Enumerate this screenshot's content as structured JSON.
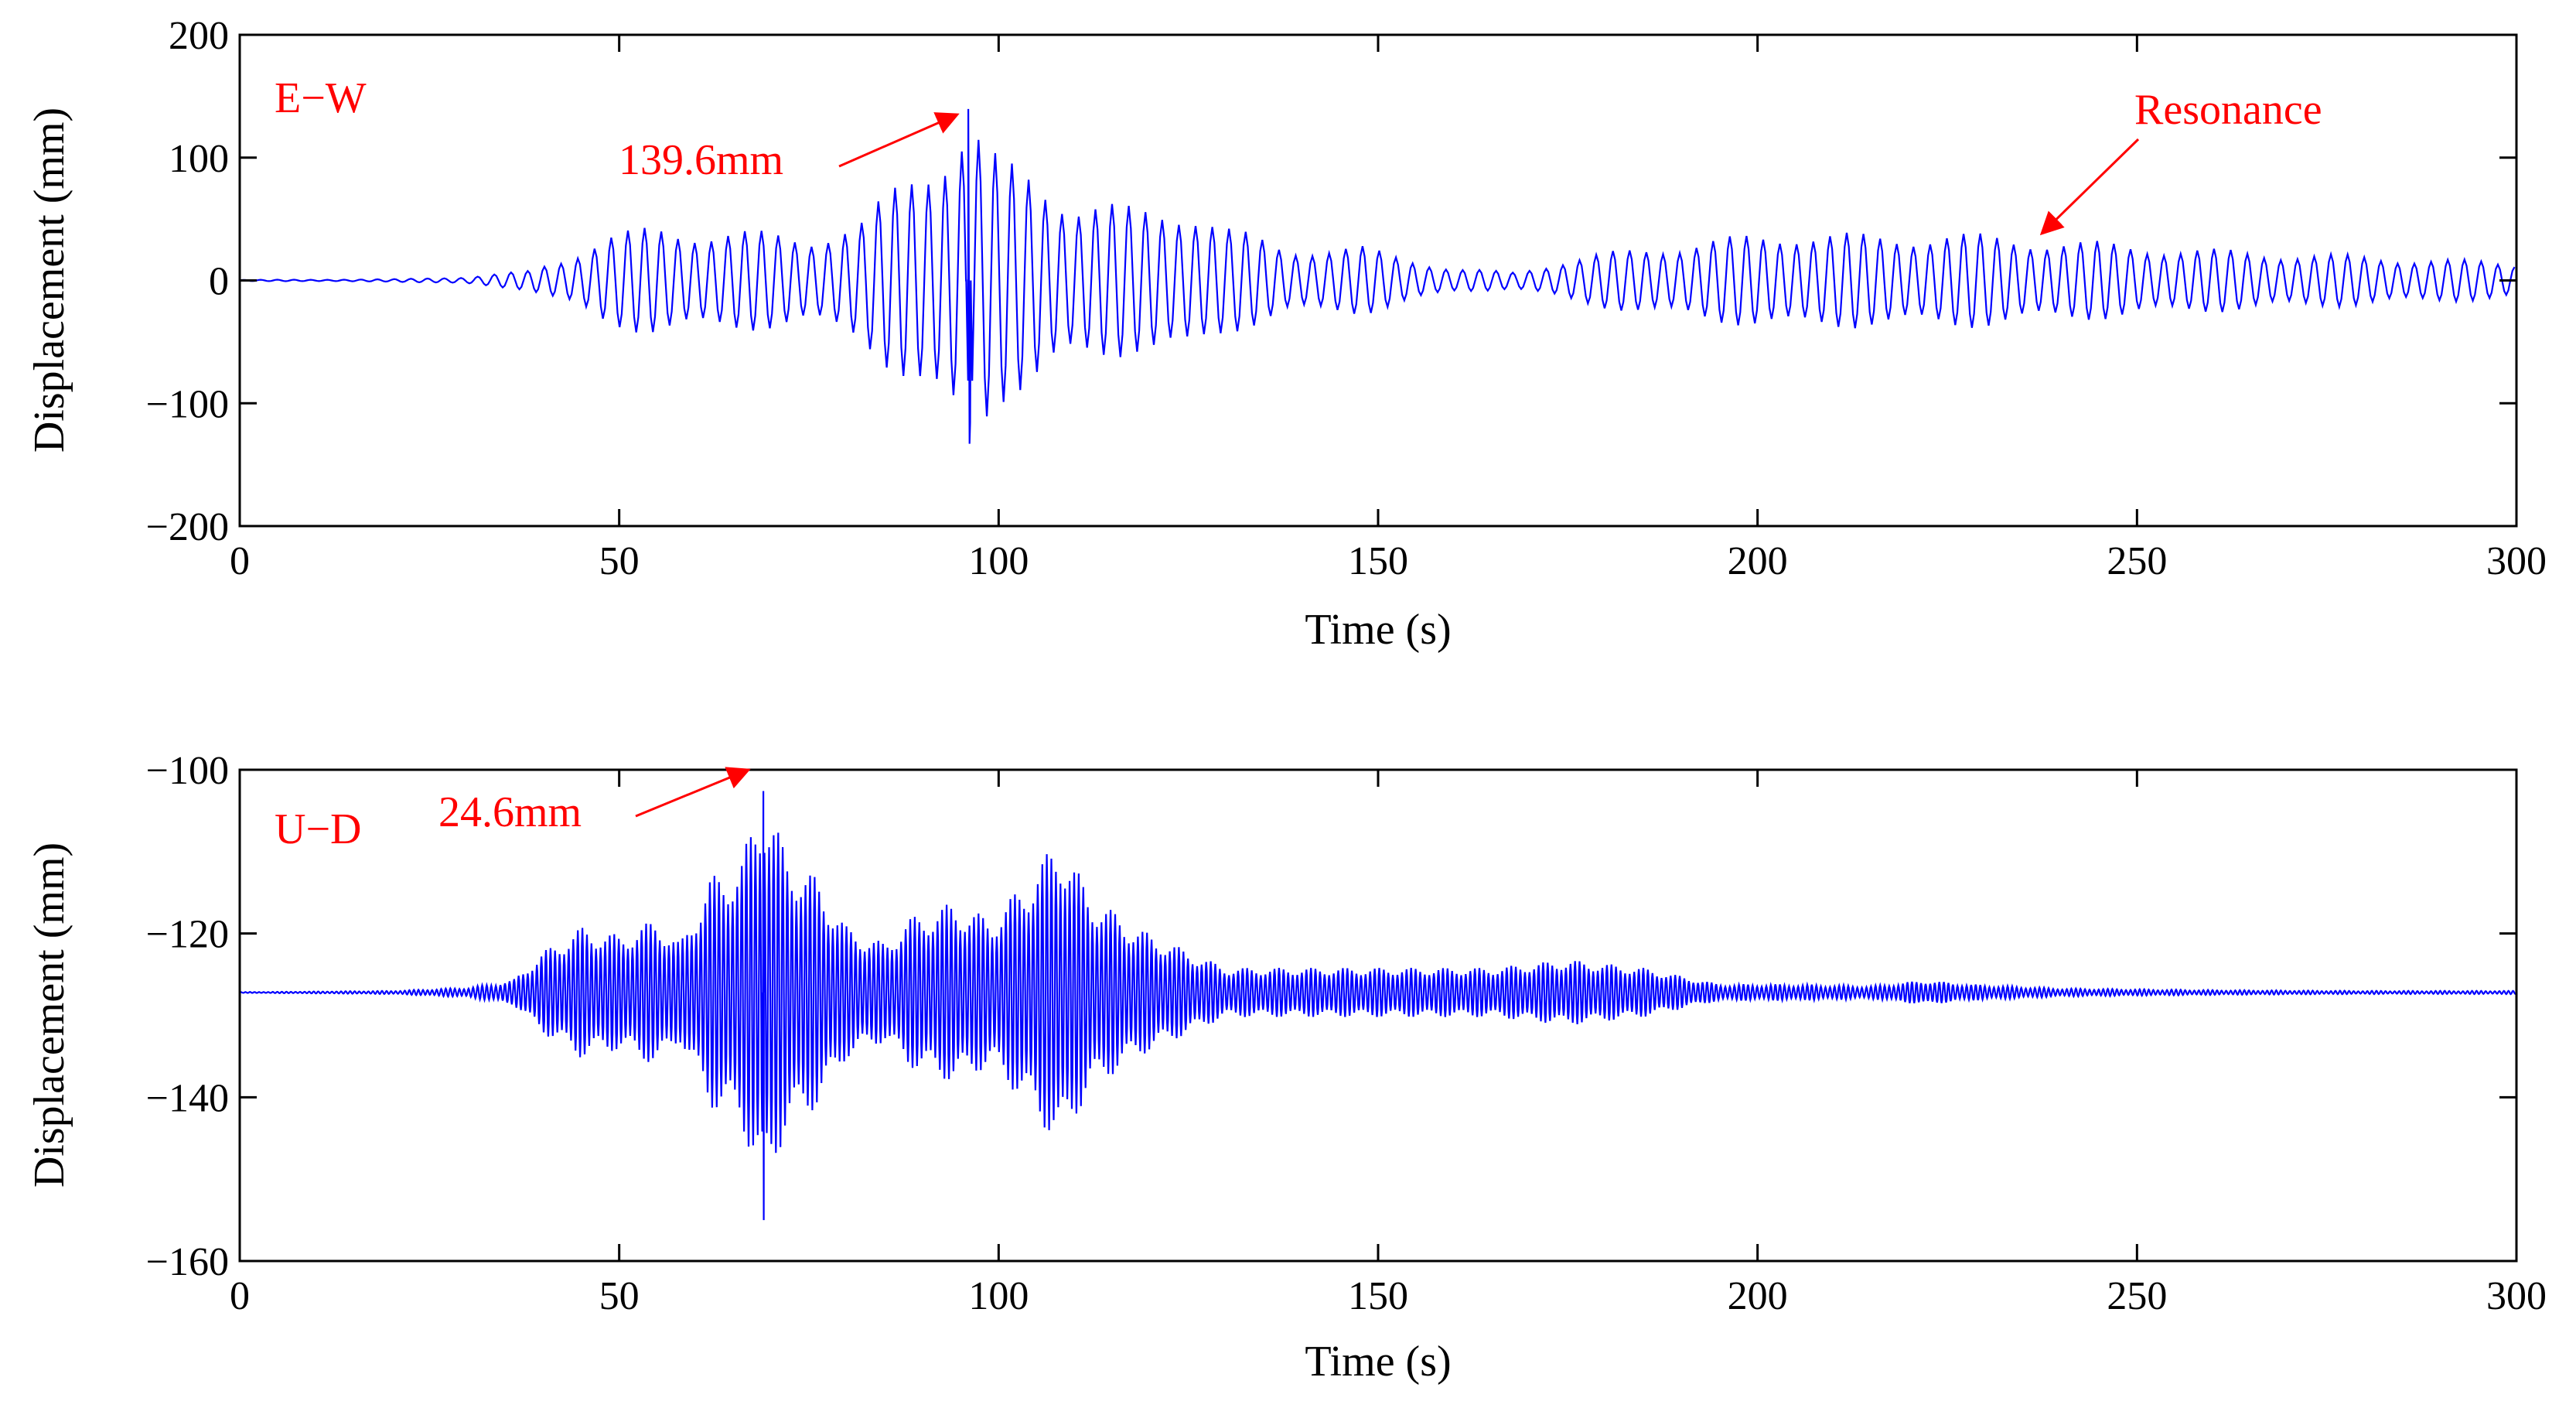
{
  "chart_data": [
    {
      "type": "line",
      "panel_label": "E−W",
      "xlabel": "Time (s)",
      "ylabel": "Displacement (mm)",
      "xlim": [
        0,
        300
      ],
      "ylim": [
        -200,
        200
      ],
      "xticks": [
        0,
        50,
        100,
        150,
        200,
        250,
        300
      ],
      "xtick_labels": [
        "0",
        "50",
        "100",
        "150",
        "200",
        "250",
        "300"
      ],
      "yticks": [
        200,
        100,
        0,
        -100,
        -200
      ],
      "ytick_labels": [
        "200",
        "100",
        "0",
        "−100",
        "−200"
      ],
      "series_color": "#0000ff",
      "annotation_color": "#ff0000",
      "baseline": 0,
      "envelope": [
        [
          0,
          0.5
        ],
        [
          20,
          1
        ],
        [
          30,
          3
        ],
        [
          38,
          8
        ],
        [
          43,
          20
        ],
        [
          48,
          38
        ],
        [
          55,
          45
        ],
        [
          65,
          42
        ],
        [
          75,
          38
        ],
        [
          82,
          50
        ],
        [
          88,
          90
        ],
        [
          92,
          115
        ],
        [
          96,
          139.6
        ],
        [
          100,
          100
        ],
        [
          105,
          92
        ],
        [
          110,
          70
        ],
        [
          118,
          60
        ],
        [
          125,
          65
        ],
        [
          130,
          45
        ],
        [
          138,
          28
        ],
        [
          148,
          28
        ],
        [
          155,
          18
        ],
        [
          160,
          10
        ],
        [
          168,
          7
        ],
        [
          175,
          18
        ],
        [
          185,
          28
        ],
        [
          195,
          35
        ],
        [
          205,
          42
        ],
        [
          215,
          38
        ],
        [
          225,
          40
        ],
        [
          235,
          36
        ],
        [
          245,
          32
        ],
        [
          260,
          26
        ],
        [
          275,
          22
        ],
        [
          290,
          18
        ],
        [
          300,
          15
        ]
      ],
      "oscillation_period_s": 2.2,
      "peak": {
        "x": 96,
        "y": 139.6,
        "min_y": -133
      },
      "annotations": [
        {
          "text": "139.6mm",
          "target": [
            96,
            139.6
          ]
        },
        {
          "text": "Resonance",
          "target": [
            237,
            38
          ]
        }
      ]
    },
    {
      "type": "line",
      "panel_label": "U−D",
      "xlabel": "Time (s)",
      "ylabel": "Displacement (mm)",
      "xlim": [
        0,
        300
      ],
      "ylim": [
        -160,
        -100
      ],
      "xticks": [
        0,
        50,
        100,
        150,
        200,
        250,
        300
      ],
      "xtick_labels": [
        "0",
        "50",
        "100",
        "150",
        "200",
        "250",
        "300"
      ],
      "yticks": [
        -100,
        -120,
        -140,
        -160
      ],
      "ytick_labels": [
        "−100",
        "−120",
        "−140",
        "−160"
      ],
      "series_color": "#0000ff",
      "annotation_color": "#ff0000",
      "baseline": -127.2,
      "envelope": [
        [
          0,
          0.05
        ],
        [
          20,
          0.2
        ],
        [
          30,
          0.6
        ],
        [
          36,
          1.5
        ],
        [
          40,
          5
        ],
        [
          45,
          8
        ],
        [
          50,
          7
        ],
        [
          55,
          9
        ],
        [
          58,
          6
        ],
        [
          62,
          14
        ],
        [
          66,
          16
        ],
        [
          69,
          24.6
        ],
        [
          72,
          17
        ],
        [
          76,
          14
        ],
        [
          80,
          8
        ],
        [
          85,
          6
        ],
        [
          88,
          9
        ],
        [
          94,
          11
        ],
        [
          99,
          9
        ],
        [
          104,
          14
        ],
        [
          108,
          19
        ],
        [
          112,
          12
        ],
        [
          118,
          8
        ],
        [
          125,
          5
        ],
        [
          130,
          3
        ],
        [
          140,
          3
        ],
        [
          150,
          3
        ],
        [
          155,
          3
        ],
        [
          165,
          3
        ],
        [
          175,
          4
        ],
        [
          185,
          3
        ],
        [
          195,
          1
        ],
        [
          205,
          1
        ],
        [
          215,
          0.8
        ],
        [
          222,
          1.5
        ],
        [
          228,
          1
        ],
        [
          240,
          0.5
        ],
        [
          260,
          0.3
        ],
        [
          280,
          0.2
        ],
        [
          300,
          0.2
        ]
      ],
      "oscillation_period_s": 0.6,
      "peak": {
        "x": 69,
        "y": -102.6,
        "min_y": -155
      },
      "annotations": [
        {
          "text": "24.6mm",
          "target": [
            69,
            -102.6
          ]
        }
      ]
    }
  ]
}
